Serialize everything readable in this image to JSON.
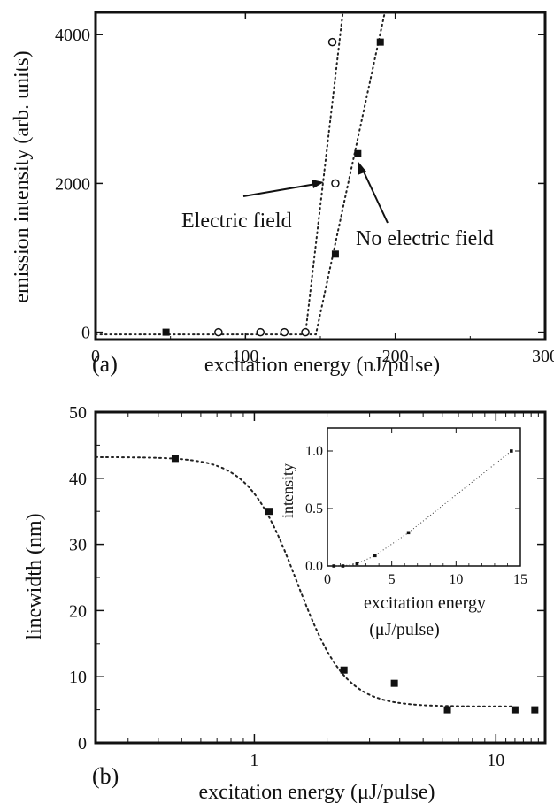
{
  "chart_data": [
    {
      "panel_label": "(a)",
      "type": "scatter",
      "xlabel": "excitation energy (nJ/pulse)",
      "ylabel": "emission intensity (arb. units)",
      "xlim": [
        0,
        300
      ],
      "ylim": [
        -100,
        4300
      ],
      "xticks": [
        "0",
        "100",
        "200",
        "300"
      ],
      "yticks": [
        "0",
        "2000",
        "4000"
      ],
      "series": [
        {
          "name": "Electric field",
          "marker": "open-circle",
          "x": [
            82,
            110,
            126,
            140,
            160,
            158
          ],
          "y": [
            0,
            0,
            0,
            0,
            2000,
            3900
          ]
        },
        {
          "name": "No electric field",
          "marker": "filled-square",
          "x": [
            47,
            160,
            175,
            190
          ],
          "y": [
            0,
            1050,
            2400,
            3900
          ]
        }
      ],
      "fits": [
        {
          "series": "Electric field",
          "style": "dotted",
          "x": [
            0,
            140,
            165
          ],
          "y": [
            -30,
            -30,
            4300
          ]
        },
        {
          "series": "No electric field",
          "style": "dotted",
          "x": [
            140,
            147,
            193
          ],
          "y": [
            -30,
            -30,
            4300
          ]
        }
      ],
      "annotations": [
        {
          "text": "Electric field",
          "points_to": {
            "x": 160,
            "y": 2000
          }
        },
        {
          "text": "No electric field",
          "points_to": {
            "x": 175,
            "y": 2400
          }
        }
      ]
    },
    {
      "panel_label": "(b)",
      "type": "scatter",
      "xlabel": "excitation energy (μJ/pulse)",
      "ylabel": "linewidth (nm)",
      "xscale": "log",
      "xlim": [
        0.22,
        16
      ],
      "ylim": [
        0,
        50
      ],
      "xticks": [
        "1",
        "10"
      ],
      "yticks": [
        "0",
        "10",
        "20",
        "30",
        "40",
        "50"
      ],
      "series": [
        {
          "name": "",
          "marker": "filled-square",
          "x": [
            0.47,
            1.15,
            2.35,
            3.8,
            6.3,
            12.0,
            14.5
          ],
          "y": [
            43,
            35,
            11,
            9,
            5,
            5,
            5
          ]
        }
      ],
      "fit": {
        "style": "dotted",
        "type": "sigmoid",
        "low": 5.5,
        "high": 43.2,
        "x0": 1.5,
        "width": 0.23
      },
      "inset": {
        "type": "scatter",
        "xlabel": "excitation energy",
        "xlabel2": "(μJ/pulse)",
        "ylabel": "intensity",
        "xlim": [
          0,
          15
        ],
        "ylim": [
          0,
          1.2
        ],
        "xticks": [
          "0",
          "5",
          "10",
          "15"
        ],
        "yticks": [
          "0.0",
          "0.5",
          "1.0"
        ],
        "x": [
          0.5,
          1.2,
          2.3,
          3.7,
          6.3,
          14.3
        ],
        "y": [
          0.0,
          0.0,
          0.02,
          0.09,
          0.29,
          1.0
        ]
      }
    }
  ]
}
